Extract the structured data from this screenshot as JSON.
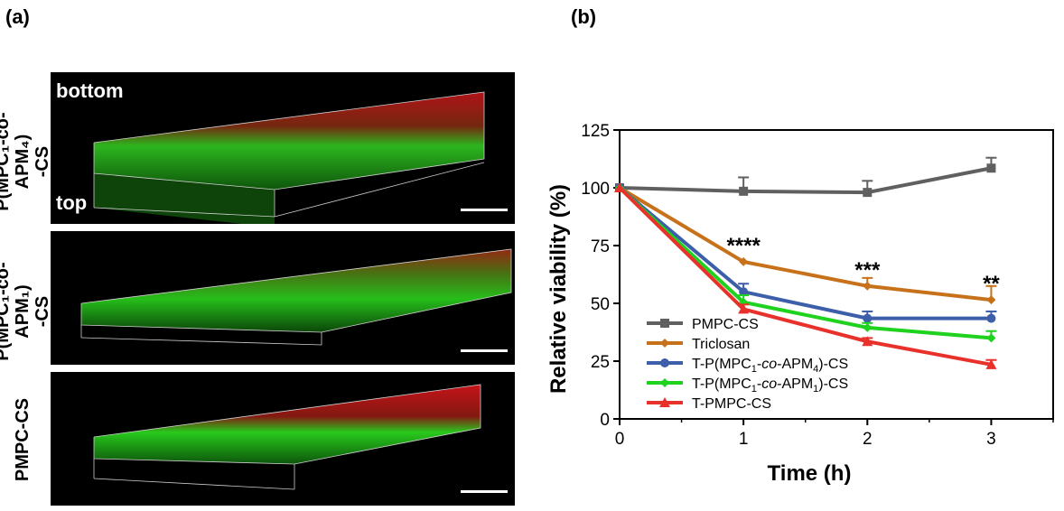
{
  "panel_a": {
    "label": "(a)",
    "rows": [
      {
        "label_line1": "P(MPC₁-co-APM₄)",
        "label_line2": "-CS",
        "overlay_top": "bottom",
        "overlay_bottom": "top"
      },
      {
        "label_line1": "P(MPC₁-co-APM₁)",
        "label_line2": "-CS",
        "overlay_top": "",
        "overlay_bottom": ""
      },
      {
        "label_line1": "PMPC-CS",
        "label_line2": "",
        "overlay_top": "",
        "overlay_bottom": ""
      }
    ],
    "colors": {
      "live": "#22d81e",
      "dead": "#d4141a",
      "background": "#000000"
    }
  },
  "panel_b": {
    "label": "(b)"
  },
  "chart_data": {
    "type": "line",
    "xlabel": "Time (h)",
    "ylabel": "Relative viability (%)",
    "xlim": [
      0,
      3.5
    ],
    "ylim": [
      0,
      125
    ],
    "xticks": [
      0,
      1,
      2,
      3
    ],
    "yticks": [
      0,
      25,
      50,
      75,
      100,
      125
    ],
    "legend_position": "bottom-left",
    "x": [
      0,
      1,
      2,
      3
    ],
    "series": [
      {
        "name": "PMPC-CS",
        "values": [
          100,
          98.5,
          98,
          108.5
        ],
        "errors": [
          0,
          6,
          5,
          4.5
        ],
        "color": "#606060",
        "marker": "square"
      },
      {
        "name": "Triclosan",
        "values": [
          100,
          68,
          57.5,
          51.5
        ],
        "errors": [
          0,
          0,
          3.5,
          6
        ],
        "color": "#c8711b",
        "marker": "diamond"
      },
      {
        "name": "T-P(MPC1-co-APM4)-CS",
        "values": [
          100,
          55,
          43.5,
          43.5
        ],
        "errors": [
          0,
          3.5,
          3,
          3
        ],
        "color": "#3d5ea8",
        "marker": "circle"
      },
      {
        "name": "T-P(MPC1-co-APM1)-CS",
        "values": [
          100,
          50.5,
          39.5,
          35
        ],
        "errors": [
          0,
          3,
          2,
          3
        ],
        "color": "#1ed21e",
        "marker": "diamond"
      },
      {
        "name": "T-PMPC-CS",
        "values": [
          100,
          47.5,
          33.5,
          23.5
        ],
        "errors": [
          0,
          2,
          1.5,
          2
        ],
        "color": "#e8312a",
        "marker": "triangle"
      }
    ],
    "legend_labels": [
      {
        "pre": "PMPC-CS",
        "sub1": "",
        "mid": "",
        "sub2": "",
        "post": ""
      },
      {
        "pre": "Triclosan",
        "sub1": "",
        "mid": "",
        "sub2": "",
        "post": ""
      },
      {
        "pre": "T-P(MPC",
        "sub1": "1",
        "mid": "-co-APM",
        "sub2": "4",
        "post": ")-CS"
      },
      {
        "pre": "T-P(MPC",
        "sub1": "1",
        "mid": "-co-APM",
        "sub2": "1",
        "post": ")-CS"
      },
      {
        "pre": "T-PMPC-CS",
        "sub1": "",
        "mid": "",
        "sub2": "",
        "post": ""
      }
    ],
    "annotations": [
      {
        "x": 1,
        "y": 68,
        "text": "****"
      },
      {
        "x": 2,
        "y": 57.5,
        "text": "***"
      },
      {
        "x": 3,
        "y": 51.5,
        "text": "**"
      }
    ]
  }
}
